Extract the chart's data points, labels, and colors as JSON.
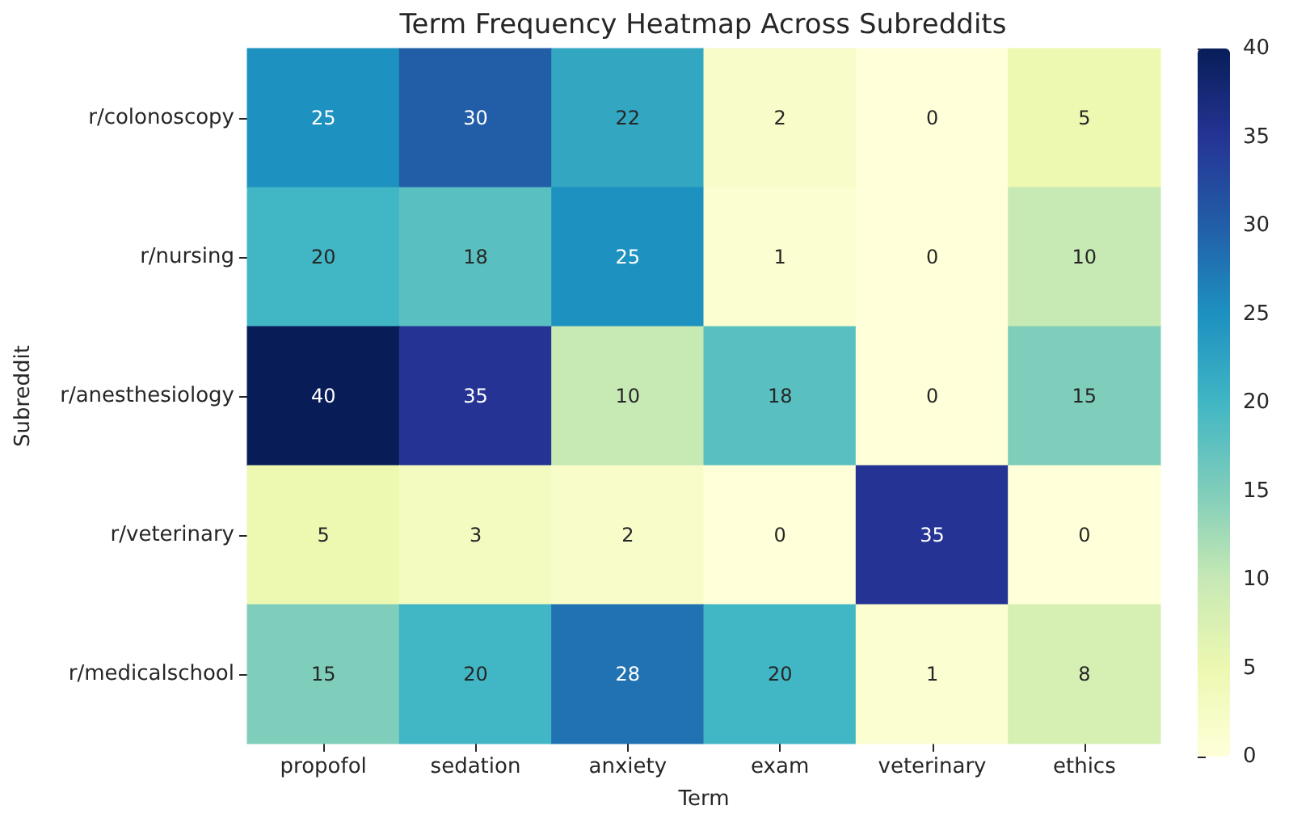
{
  "chart_data": {
    "type": "heatmap",
    "title": "Term Frequency Heatmap Across Subreddits",
    "xlabel": "Term",
    "ylabel": "Subreddit",
    "categories": [
      "propofol",
      "sedation",
      "anxiety",
      "exam",
      "veterinary",
      "ethics"
    ],
    "y_categories": [
      "r/colonoscopy",
      "r/nursing",
      "r/anesthesiology",
      "r/veterinary",
      "r/medicalschool"
    ],
    "cells": [
      [
        25,
        30,
        22,
        2,
        0,
        5
      ],
      [
        20,
        18,
        25,
        1,
        0,
        10
      ],
      [
        40,
        35,
        10,
        18,
        0,
        15
      ],
      [
        5,
        3,
        2,
        0,
        35,
        0
      ],
      [
        15,
        20,
        28,
        20,
        1,
        8
      ]
    ],
    "clim": [
      0,
      40
    ],
    "cticks": [
      0,
      5,
      10,
      15,
      20,
      25,
      30,
      35,
      40
    ],
    "colors": [
      "#ffffd9",
      "#edf8b1",
      "#c7e9b4",
      "#7fcdbb",
      "#41b6c4",
      "#1d91c0",
      "#225ea8",
      "#253494",
      "#081d58"
    ],
    "data_labels": true
  }
}
